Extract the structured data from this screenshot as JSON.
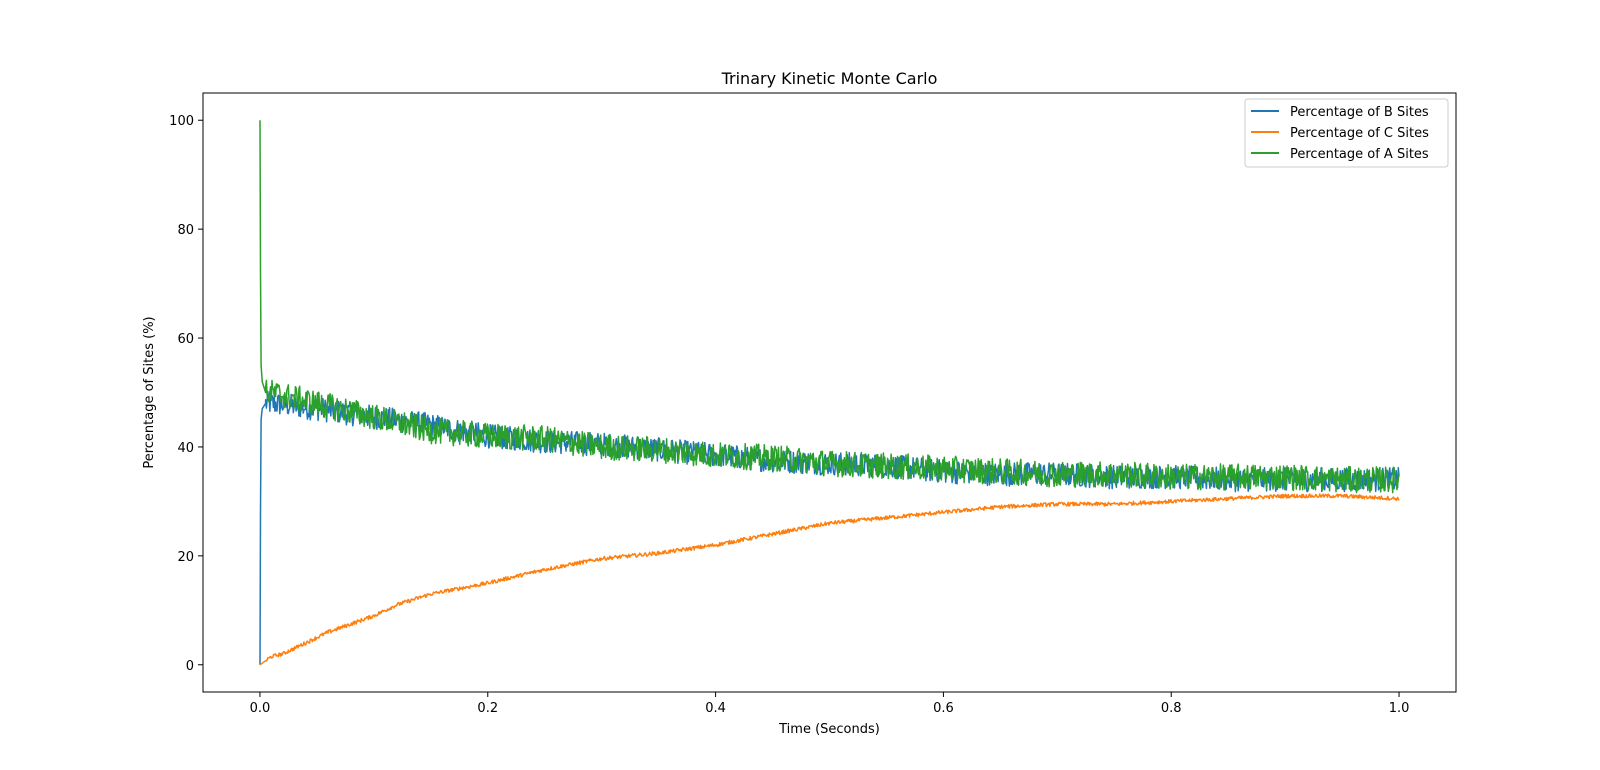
{
  "chart_data": {
    "type": "line",
    "title": "Trinary Kinetic Monte Carlo",
    "xlabel": "Time (Seconds)",
    "ylabel": "Percentage of Sites (%)",
    "xlim": [
      -0.05,
      1.05
    ],
    "ylim": [
      -5,
      105
    ],
    "xticks": [
      0.0,
      0.2,
      0.4,
      0.6,
      0.8,
      1.0
    ],
    "xtick_labels": [
      "0.0",
      "0.2",
      "0.4",
      "0.6",
      "0.8",
      "1.0"
    ],
    "yticks": [
      0,
      20,
      40,
      60,
      80,
      100
    ],
    "ytick_labels": [
      "0",
      "20",
      "40",
      "60",
      "80",
      "100"
    ],
    "grid": false,
    "legend_position": "top-right",
    "series": [
      {
        "name": "Percentage of B Sites",
        "color": "#1f77b4",
        "x": [
          0.0,
          0.0005,
          0.001,
          0.002,
          0.005,
          0.01,
          0.05,
          0.1,
          0.15,
          0.2,
          0.25,
          0.3,
          0.35,
          0.4,
          0.45,
          0.5,
          0.55,
          0.6,
          0.65,
          0.7,
          0.75,
          0.8,
          0.85,
          0.9,
          0.95,
          1.0
        ],
        "y": [
          0,
          28,
          45,
          47,
          48,
          48,
          47,
          45.5,
          44,
          42,
          41,
          40.5,
          39.5,
          38.5,
          37.5,
          37,
          36.5,
          35.5,
          35,
          35,
          34.5,
          34.5,
          34,
          34,
          34,
          34
        ]
      },
      {
        "name": "Percentage of C Sites",
        "color": "#ff7f0e",
        "x": [
          0.0,
          0.01,
          0.02,
          0.04,
          0.06,
          0.08,
          0.1,
          0.12,
          0.15,
          0.2,
          0.25,
          0.3,
          0.35,
          0.4,
          0.45,
          0.5,
          0.55,
          0.6,
          0.65,
          0.7,
          0.75,
          0.8,
          0.85,
          0.9,
          0.95,
          1.0
        ],
        "y": [
          0,
          1.5,
          2,
          4,
          6,
          7.5,
          9,
          11,
          13,
          15,
          17.5,
          19.5,
          20.5,
          22,
          24,
          26,
          27,
          28,
          29,
          29.5,
          29.5,
          30,
          30.5,
          31,
          31,
          30.5
        ]
      },
      {
        "name": "Percentage of A Sites",
        "color": "#2ca02c",
        "x": [
          0.0,
          0.0005,
          0.001,
          0.002,
          0.005,
          0.01,
          0.05,
          0.1,
          0.15,
          0.2,
          0.25,
          0.3,
          0.35,
          0.4,
          0.45,
          0.5,
          0.55,
          0.6,
          0.65,
          0.7,
          0.75,
          0.8,
          0.85,
          0.9,
          0.95,
          1.0
        ],
        "y": [
          100,
          72,
          55,
          52,
          50,
          50,
          48,
          45.5,
          43,
          42,
          41.5,
          40,
          39.5,
          38.5,
          38,
          37,
          36.5,
          36,
          35.5,
          35,
          35,
          34.5,
          34.5,
          34.5,
          34,
          34
        ]
      }
    ]
  }
}
